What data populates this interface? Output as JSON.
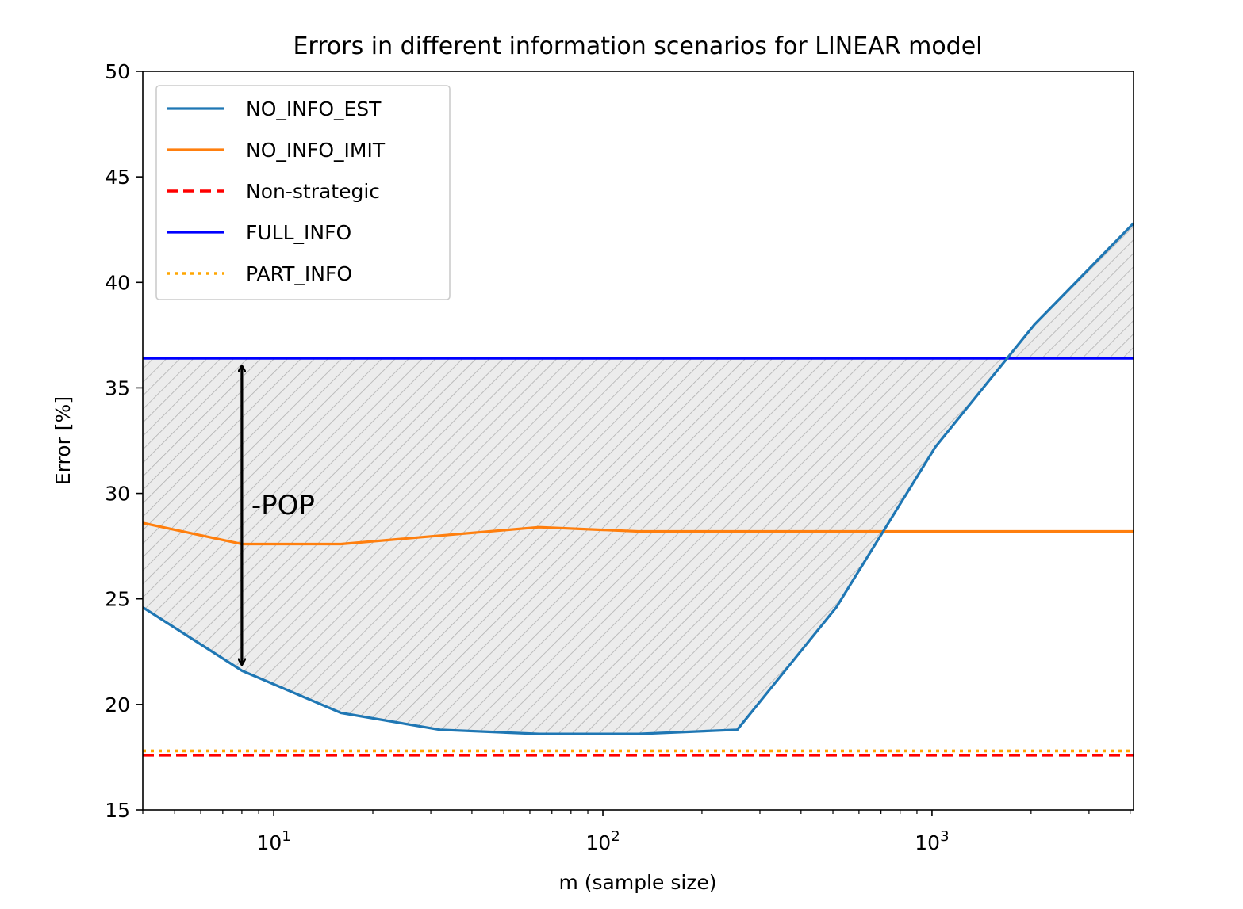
{
  "chart_data": {
    "type": "line",
    "title": "Errors in different information scenarios for LINEAR model",
    "xlabel": "m (sample size)",
    "ylabel": "Error [%]",
    "xscale": "log",
    "xlim": [
      4,
      4096
    ],
    "ylim": [
      15,
      50
    ],
    "yticks": [
      15,
      20,
      25,
      30,
      35,
      40,
      45,
      50
    ],
    "xticks": [
      {
        "value": 10,
        "base": "10",
        "exp": "1"
      },
      {
        "value": 100,
        "base": "10",
        "exp": "2"
      },
      {
        "value": 1000,
        "base": "10",
        "exp": "3"
      }
    ],
    "grid": false,
    "legend_position": "upper-left",
    "series": [
      {
        "name": "NO_INFO_EST",
        "color": "#1f77b4",
        "style": "solid",
        "x": [
          4,
          8,
          16,
          32,
          64,
          128,
          256,
          512,
          1024,
          2048,
          4096
        ],
        "y": [
          24.6,
          21.6,
          19.6,
          18.8,
          18.6,
          18.6,
          18.8,
          24.6,
          32.2,
          38.0,
          42.8
        ]
      },
      {
        "name": "NO_INFO_IMIT",
        "color": "#ff7f0e",
        "style": "solid",
        "x": [
          4,
          8,
          16,
          32,
          64,
          128,
          256,
          512,
          1024,
          2048,
          4096
        ],
        "y": [
          28.6,
          27.6,
          27.6,
          28.0,
          28.4,
          28.2,
          28.2,
          28.2,
          28.2,
          28.2,
          28.2
        ]
      },
      {
        "name": "Non-strategic",
        "color": "#ff0000",
        "style": "dashed",
        "y_const": 17.6
      },
      {
        "name": "FULL_INFO",
        "color": "#0000ff",
        "style": "solid",
        "y_const": 36.4
      },
      {
        "name": "PART_INFO",
        "color": "#ffa500",
        "style": "dotted",
        "y_const": 17.8
      }
    ],
    "hatched_region": {
      "between": [
        "NO_INFO_EST",
        "FULL_INFO"
      ],
      "fill": "#ececec",
      "hatch_color": "#b0b0b0"
    },
    "annotation": {
      "text": "-POP",
      "x": 8,
      "y_top": 36.4,
      "y_bottom": 21.6,
      "label_y": 29
    }
  }
}
